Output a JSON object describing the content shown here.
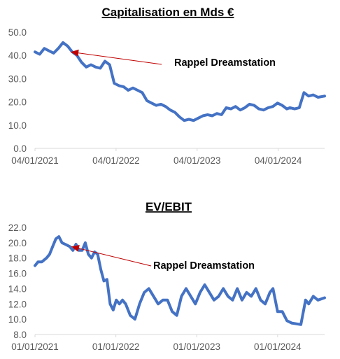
{
  "colors": {
    "series": "#4472c4",
    "annotation": "#c00000",
    "axis": "#d9d9d9",
    "tick": "#595959"
  },
  "chart_data": [
    {
      "type": "line",
      "title": "Capitalisation en Mds €",
      "xlabel": "",
      "ylabel": "",
      "ylim": [
        0,
        50
      ],
      "yticks": [
        "0.0",
        "10.0",
        "20.0",
        "30.0",
        "40.0",
        "50.0"
      ],
      "xlim": [
        "2021-01-04",
        "2024-07-31"
      ],
      "xticks": [
        "04/01/2021",
        "04/01/2022",
        "04/01/2023",
        "04/01/2024"
      ],
      "grid": false,
      "annotation": {
        "text": "Rappel Dreamstation",
        "x": "2021-06-14",
        "y": 41.5
      },
      "series": [
        {
          "x": [
            "2021-01-04",
            "2021-01-25",
            "2021-02-15",
            "2021-03-08",
            "2021-03-29",
            "2021-04-19",
            "2021-05-10",
            "2021-05-31",
            "2021-06-21",
            "2021-07-12",
            "2021-08-02",
            "2021-08-23",
            "2021-09-13",
            "2021-10-04",
            "2021-10-25",
            "2021-11-15",
            "2021-12-06",
            "2021-12-27",
            "2022-01-17",
            "2022-02-07",
            "2022-02-28",
            "2022-03-21",
            "2022-04-11",
            "2022-05-02",
            "2022-05-23",
            "2022-06-13",
            "2022-07-04",
            "2022-07-25",
            "2022-08-15",
            "2022-09-05",
            "2022-09-26",
            "2022-10-17",
            "2022-11-07",
            "2022-11-28",
            "2022-12-19",
            "2023-01-09",
            "2023-01-30",
            "2023-02-20",
            "2023-03-13",
            "2023-04-03",
            "2023-04-24",
            "2023-05-15",
            "2023-06-05",
            "2023-06-26",
            "2023-07-17",
            "2023-08-07",
            "2023-08-28",
            "2023-09-18",
            "2023-10-09",
            "2023-10-30",
            "2023-11-20",
            "2023-12-11",
            "2024-01-01",
            "2024-01-22",
            "2024-02-12",
            "2024-02-26",
            "2024-03-18",
            "2024-04-08",
            "2024-04-29",
            "2024-05-20",
            "2024-06-10",
            "2024-07-01",
            "2024-07-31"
          ],
          "values": [
            41.5,
            40.5,
            43.0,
            42.0,
            41.0,
            43.0,
            45.5,
            44.0,
            41.5,
            40.0,
            37.0,
            35.0,
            36.0,
            35.0,
            34.5,
            37.5,
            36.0,
            28.0,
            27.0,
            26.5,
            25.0,
            26.0,
            25.0,
            24.0,
            20.5,
            19.5,
            18.5,
            19.0,
            18.0,
            16.5,
            15.5,
            13.5,
            12.0,
            12.5,
            12.0,
            13.0,
            14.0,
            14.5,
            14.0,
            15.0,
            14.5,
            17.5,
            17.0,
            18.0,
            16.5,
            17.5,
            19.0,
            18.5,
            17.0,
            16.5,
            17.5,
            18.0,
            19.5,
            18.5,
            17.0,
            17.5,
            17.0,
            17.5,
            24.0,
            22.5,
            23.0,
            22.0,
            22.5
          ]
        }
      ]
    },
    {
      "type": "line",
      "title": "EV/EBIT",
      "xlabel": "",
      "ylabel": "",
      "ylim": [
        8,
        22
      ],
      "yticks": [
        "8.0",
        "10.0",
        "12.0",
        "14.0",
        "16.0",
        "18.0",
        "20.0",
        "22.0"
      ],
      "xlim": [
        "2021-01-01",
        "2024-07-31"
      ],
      "xticks": [
        "01/01/2021",
        "01/01/2022",
        "01/01/2023",
        "01/01/2024"
      ],
      "grid": false,
      "annotation": {
        "text": "Rappel Dreamstation",
        "x": "2021-06-14",
        "y": 19.5
      },
      "series": [
        {
          "x": [
            "2021-01-01",
            "2021-01-15",
            "2021-02-01",
            "2021-02-22",
            "2021-03-08",
            "2021-03-22",
            "2021-04-05",
            "2021-04-19",
            "2021-05-03",
            "2021-05-17",
            "2021-06-07",
            "2021-06-21",
            "2021-07-05",
            "2021-07-19",
            "2021-08-02",
            "2021-08-16",
            "2021-08-30",
            "2021-09-13",
            "2021-09-27",
            "2021-10-11",
            "2021-10-25",
            "2021-11-08",
            "2021-11-22",
            "2021-12-06",
            "2021-12-20",
            "2022-01-03",
            "2022-01-17",
            "2022-01-31",
            "2022-02-14",
            "2022-03-07",
            "2022-03-28",
            "2022-04-18",
            "2022-05-09",
            "2022-05-30",
            "2022-06-20",
            "2022-07-11",
            "2022-08-01",
            "2022-08-22",
            "2022-09-12",
            "2022-10-03",
            "2022-10-24",
            "2022-11-14",
            "2022-12-05",
            "2022-12-26",
            "2023-01-16",
            "2023-02-06",
            "2023-02-27",
            "2023-03-20",
            "2023-04-10",
            "2023-05-01",
            "2023-05-22",
            "2023-06-12",
            "2023-07-03",
            "2023-07-24",
            "2023-08-14",
            "2023-09-04",
            "2023-09-25",
            "2023-10-16",
            "2023-11-06",
            "2023-11-27",
            "2023-12-11",
            "2024-01-01",
            "2024-01-22",
            "2024-02-12",
            "2024-03-04",
            "2024-03-25",
            "2024-04-15",
            "2024-05-06",
            "2024-05-20",
            "2024-06-10",
            "2024-07-01",
            "2024-07-31"
          ],
          "values": [
            17.0,
            17.5,
            17.5,
            18.0,
            18.5,
            19.5,
            20.5,
            20.8,
            20.0,
            19.8,
            19.5,
            19.0,
            19.8,
            19.0,
            19.0,
            20.0,
            18.5,
            18.0,
            18.8,
            18.5,
            16.5,
            15.0,
            15.2,
            12.0,
            11.2,
            12.5,
            12.0,
            12.5,
            12.0,
            10.5,
            10.0,
            12.0,
            13.5,
            14.0,
            13.0,
            12.0,
            12.5,
            12.5,
            11.0,
            10.5,
            13.0,
            14.0,
            13.0,
            12.0,
            13.5,
            14.5,
            13.5,
            12.5,
            13.0,
            14.0,
            13.0,
            12.5,
            14.0,
            12.5,
            13.5,
            13.0,
            14.0,
            12.5,
            12.0,
            13.5,
            14.0,
            11.0,
            11.0,
            9.8,
            9.5,
            9.4,
            9.3,
            12.5,
            12.0,
            13.0,
            12.5,
            12.8
          ]
        }
      ]
    }
  ]
}
